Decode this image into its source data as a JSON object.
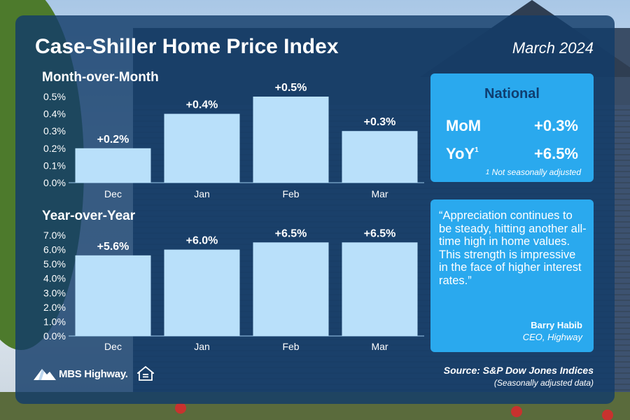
{
  "title": "Case-Shiller Home Price Index",
  "date": "March 2024",
  "chart_data": [
    {
      "type": "bar",
      "title": "Month-over-Month",
      "categories": [
        "Dec",
        "Jan",
        "Feb",
        "Mar"
      ],
      "values": [
        0.2,
        0.4,
        0.5,
        0.3
      ],
      "data_labels": [
        "+0.2%",
        "+0.4%",
        "+0.5%",
        "+0.3%"
      ],
      "yticks": [
        "0.0%",
        "0.1%",
        "0.2%",
        "0.3%",
        "0.4%",
        "0.5%"
      ],
      "ylim": [
        0,
        0.5
      ],
      "xlabel": "",
      "ylabel": "",
      "grid": false,
      "bar_color": "#b9e0fa"
    },
    {
      "type": "bar",
      "title": "Year-over-Year",
      "categories": [
        "Dec",
        "Jan",
        "Feb",
        "Mar"
      ],
      "values": [
        5.6,
        6.0,
        6.5,
        6.5
      ],
      "data_labels": [
        "+5.6%",
        "+6.0%",
        "+6.5%",
        "+6.5%"
      ],
      "yticks": [
        "0.0%",
        "1.0%",
        "2.0%",
        "3.0%",
        "4.0%",
        "5.0%",
        "6.0%",
        "7.0%"
      ],
      "ylim": [
        0,
        7
      ],
      "xlabel": "",
      "ylabel": "",
      "grid": false,
      "bar_color": "#b9e0fa"
    }
  ],
  "national": {
    "title": "National",
    "mom_label": "MoM",
    "mom_value": "+0.3%",
    "yoy_label": "YoY",
    "yoy_sup": "1",
    "yoy_value": "+6.5%",
    "footnote_sup": "1",
    "footnote": " Not seasonally adjusted"
  },
  "quote": {
    "text": "“Appreciation continues to be steady, hitting another all-time high in home values. This strength is impressive in the face of higher interest rates.”",
    "author": "Barry Habib",
    "role": "CEO, Highway"
  },
  "logo": {
    "brand": "MBS Highway."
  },
  "source": {
    "line1": "Source: S&P Dow Jones Indices",
    "line2": "(Seasonally adjusted data)"
  },
  "colors": {
    "panel": "#123c69",
    "box": "#2aa9ee",
    "bar": "#b9e0fa",
    "national_title": "#0f3e70"
  }
}
